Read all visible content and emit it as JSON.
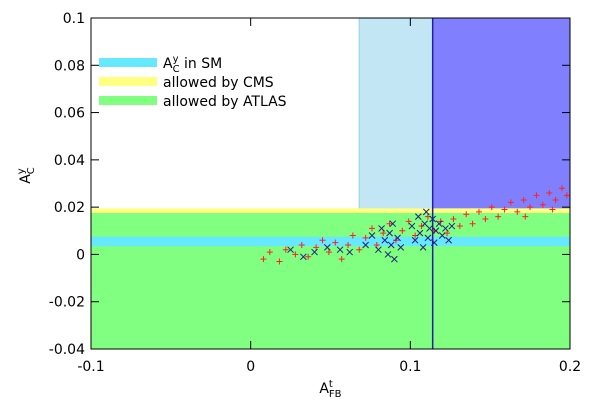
{
  "chart_data": {
    "type": "scatter",
    "x_label": {
      "base": "A",
      "sup": "t",
      "sub": "FB"
    },
    "y_label": {
      "base": "A",
      "sup": "y",
      "sub": "C"
    },
    "xlim": [
      -0.1,
      0.2
    ],
    "xticks": [
      -0.1,
      0,
      0.1,
      0.2
    ],
    "ylim": [
      -0.04,
      0.1
    ],
    "yticks": [
      -0.04,
      -0.02,
      0,
      0.02,
      0.04,
      0.06,
      0.08,
      0.1
    ],
    "legend": "upper left",
    "regions": [
      {
        "color": "#c2e6f4",
        "edge_color": "#9fd3ea",
        "edge_over_bands": false,
        "xlim": [
          0.068,
          0.2
        ]
      },
      {
        "color": "#8080ff",
        "edge_color": "#2020a0",
        "edge_over_bands": true,
        "xlim": [
          0.114,
          0.2
        ]
      }
    ],
    "bands": [
      {
        "name": {
          "text": "allowed by CMS"
        },
        "color": "#ffff80",
        "ylim": [
          -0.04,
          0.0195
        ]
      },
      {
        "name": {
          "text": "allowed by ATLAS"
        },
        "color": "#80ff80",
        "ylim": [
          -0.04,
          0.0175
        ]
      },
      {
        "name": {
          "base": "A",
          "sup": "y",
          "sub": "C",
          "text": " in SM"
        },
        "color": "#66e8ff",
        "ylim": [
          0.0035,
          0.0075
        ]
      }
    ],
    "legend_order": [
      2,
      0,
      1
    ],
    "series": [
      {
        "marker": "+",
        "color": "#ff2020",
        "x": [
          0.008,
          0.012,
          0.018,
          0.022,
          0.028,
          0.032,
          0.036,
          0.041,
          0.045,
          0.049,
          0.053,
          0.057,
          0.061,
          0.064,
          0.068,
          0.072,
          0.076,
          0.079,
          0.083,
          0.087,
          0.091,
          0.095,
          0.099,
          0.103,
          0.107,
          0.111,
          0.115,
          0.119,
          0.123,
          0.127,
          0.131,
          0.135,
          0.139,
          0.143,
          0.147,
          0.151,
          0.155,
          0.159,
          0.163,
          0.167,
          0.171,
          0.175,
          0.179,
          0.183,
          0.187,
          0.191,
          0.195,
          0.198,
          0.189,
          0.172
        ],
        "values": [
          -0.002,
          0.001,
          -0.003,
          0.002,
          0.0,
          0.004,
          -0.001,
          0.003,
          0.006,
          0.001,
          0.005,
          -0.002,
          0.004,
          0.008,
          0.002,
          0.007,
          0.011,
          0.004,
          0.009,
          0.013,
          0.006,
          0.01,
          0.014,
          0.008,
          0.012,
          0.016,
          0.01,
          0.014,
          0.009,
          0.015,
          0.012,
          0.017,
          0.013,
          0.018,
          0.015,
          0.02,
          0.016,
          0.019,
          0.022,
          0.018,
          0.023,
          0.02,
          0.025,
          0.021,
          0.026,
          0.023,
          0.028,
          0.025,
          0.019,
          0.016
        ]
      },
      {
        "marker": "x",
        "color": "#202080",
        "x": [
          0.025,
          0.033,
          0.04,
          0.048,
          0.056,
          0.062,
          0.072,
          0.076,
          0.08,
          0.082,
          0.084,
          0.086,
          0.087,
          0.088,
          0.089,
          0.09,
          0.092,
          0.094,
          0.101,
          0.103,
          0.105,
          0.106,
          0.108,
          0.109,
          0.11,
          0.111,
          0.112,
          0.114,
          0.115,
          0.116,
          0.118,
          0.12,
          0.122,
          0.124,
          0.126
        ],
        "values": [
          0.002,
          -0.001,
          0.001,
          0.003,
          0.002,
          0.001,
          0.004,
          0.008,
          0.002,
          0.011,
          0.006,
          0.0,
          0.009,
          0.004,
          0.013,
          -0.002,
          0.007,
          0.003,
          0.012,
          0.006,
          0.016,
          0.009,
          0.003,
          0.013,
          0.018,
          0.007,
          0.011,
          0.015,
          0.005,
          0.01,
          0.013,
          0.008,
          0.011,
          0.006,
          0.012
        ]
      }
    ]
  }
}
